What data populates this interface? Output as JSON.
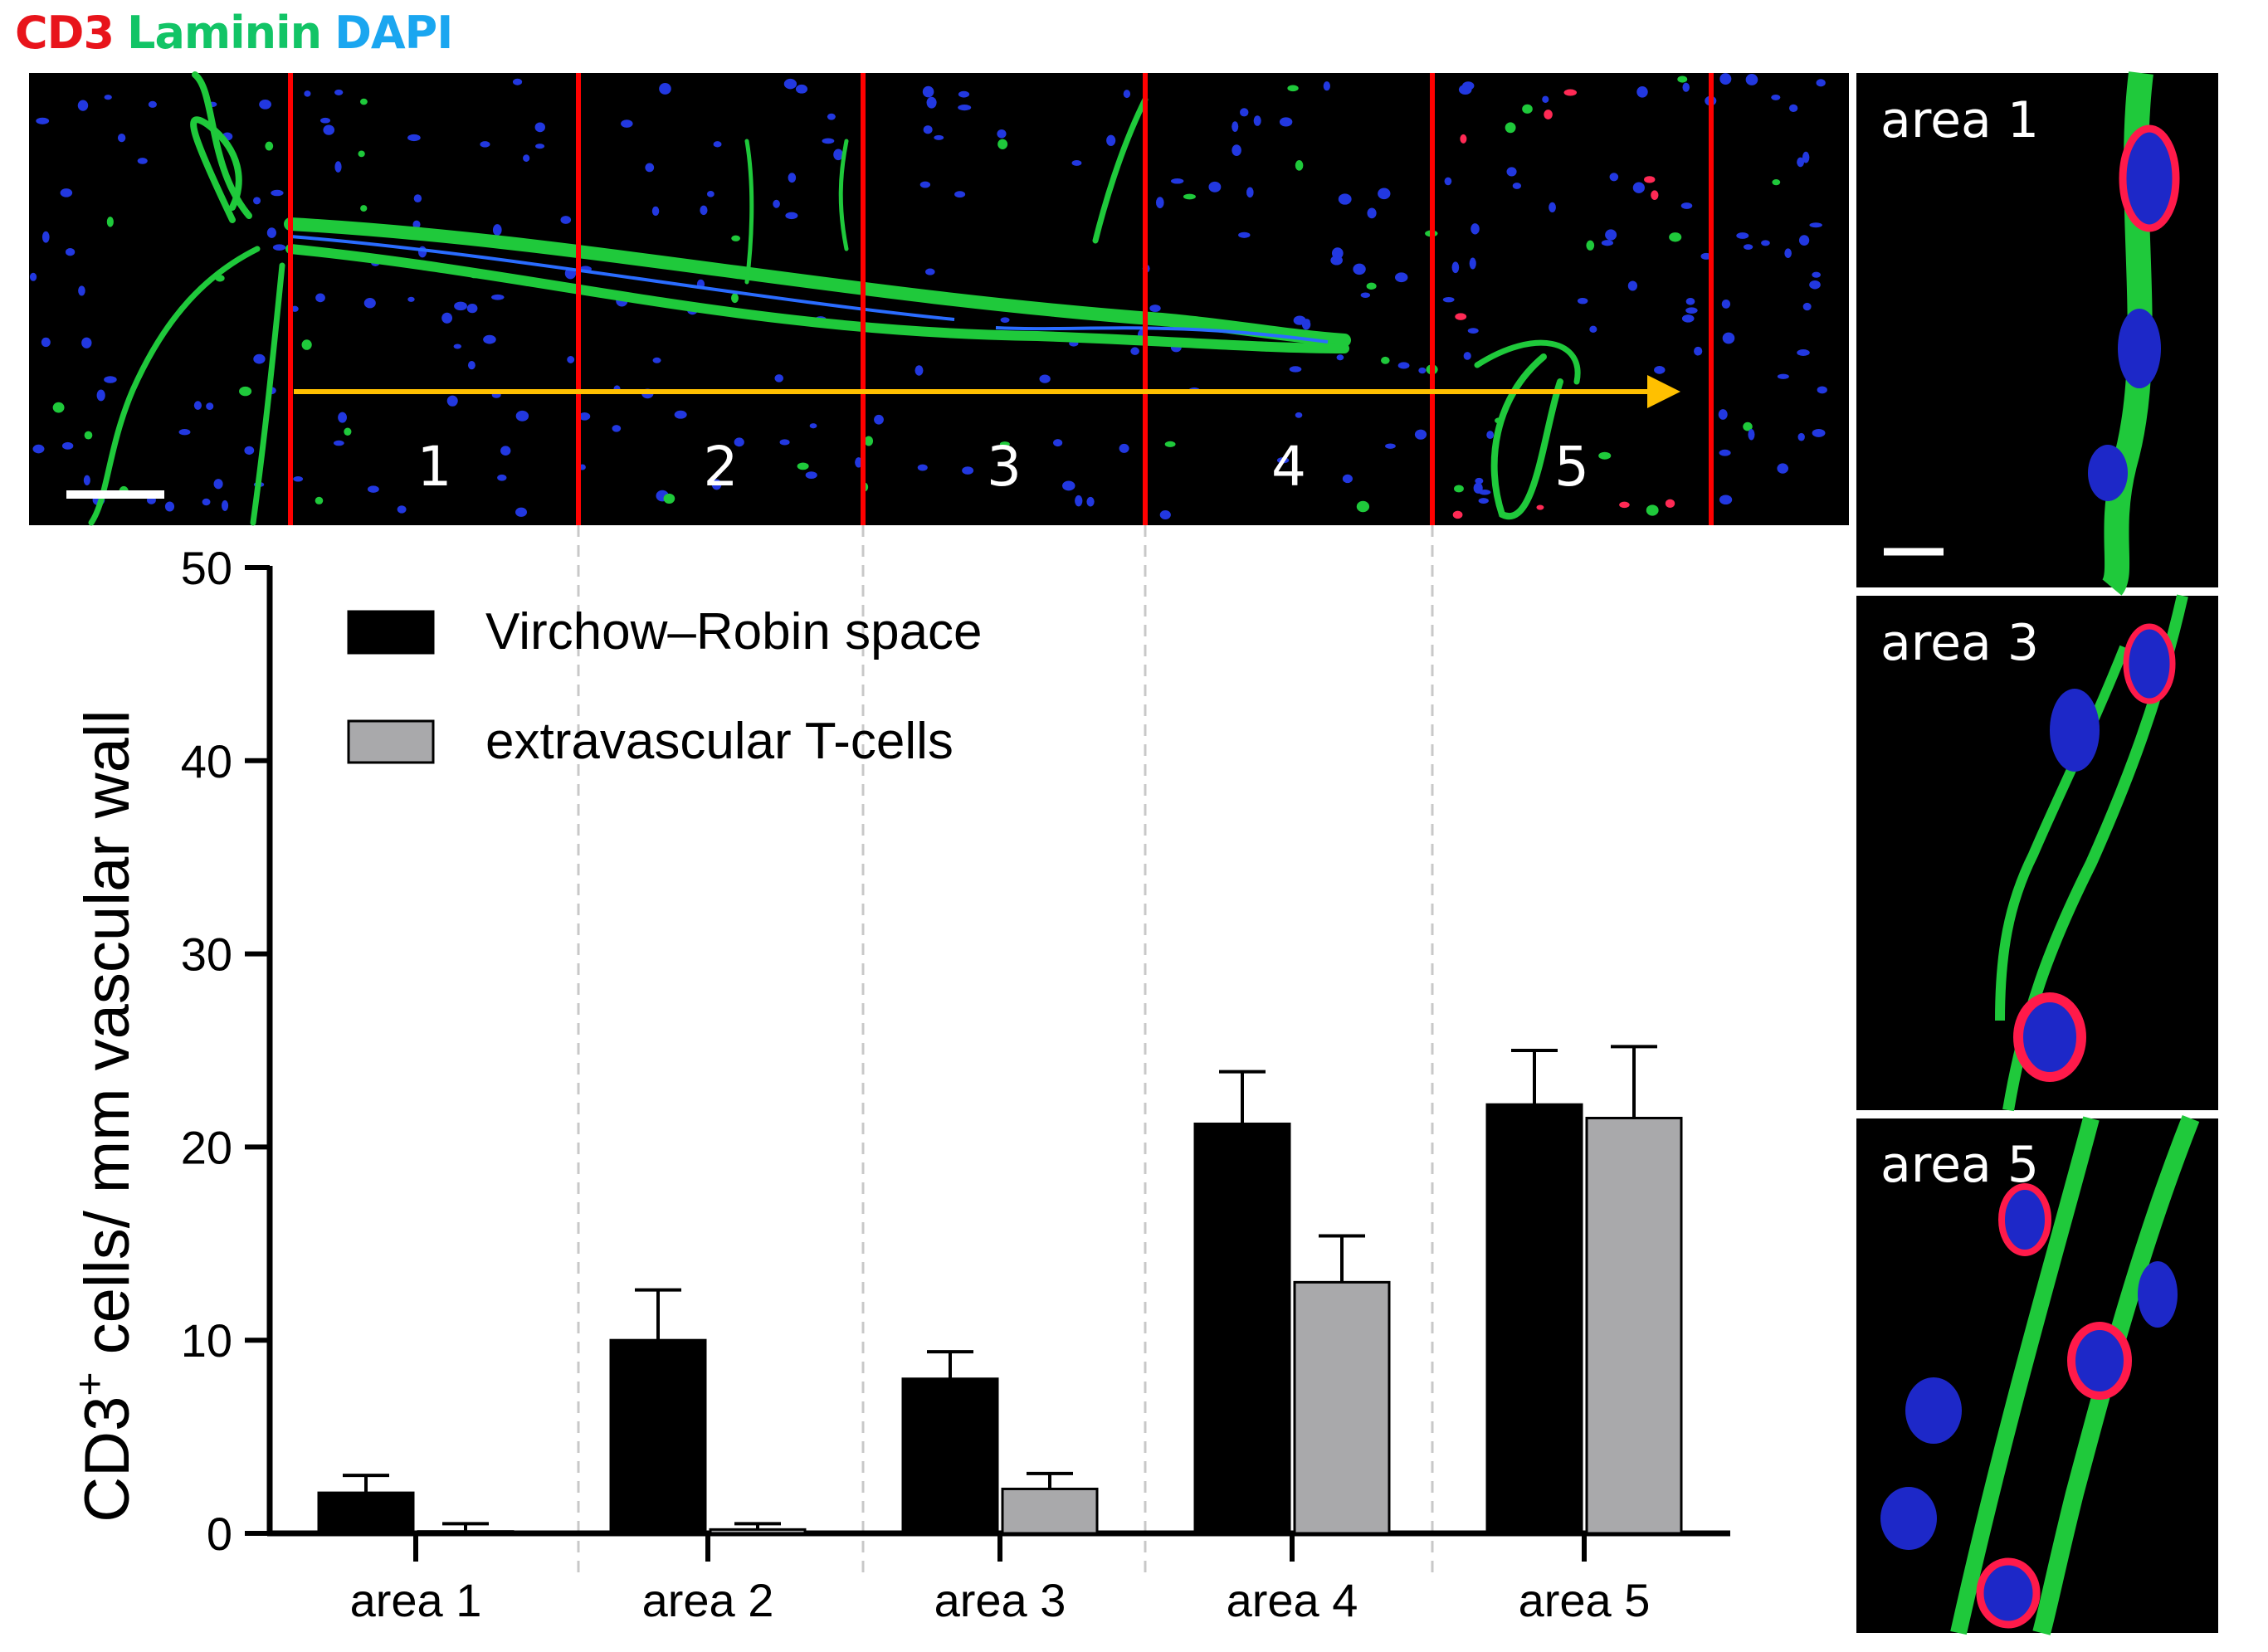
{
  "stain_legend": {
    "items": [
      {
        "label": "CD3",
        "color": "#e8141b"
      },
      {
        "label": "Laminin",
        "color": "#12c466"
      },
      {
        "label": "DAPI",
        "color": "#1aa6f0"
      }
    ]
  },
  "micrograph": {
    "area_numbers": [
      "1",
      "2",
      "3",
      "4",
      "5"
    ]
  },
  "insets": [
    {
      "label": "area 1"
    },
    {
      "label": "area 3"
    },
    {
      "label": "area 5"
    }
  ],
  "chart_data": {
    "type": "bar",
    "categories": [
      "area 1",
      "area 2",
      "area 3",
      "area 4",
      "area 5"
    ],
    "ylabel": "CD3+ cells/ mm vascular wall",
    "ylabel_parts": {
      "before": "CD3",
      "sup": "+",
      "after": " cells/ mm vascular wall"
    },
    "ylim": [
      0,
      50
    ],
    "yticks": [
      "0",
      "10",
      "20",
      "30",
      "40",
      "50"
    ],
    "legend_position": "top-left",
    "series": [
      {
        "name": "Virchow–Robin space",
        "color": "#000000",
        "values": [
          2.1,
          10.0,
          8.0,
          21.2,
          22.2
        ],
        "errors": [
          0.9,
          2.6,
          1.4,
          2.7,
          2.8
        ]
      },
      {
        "name": "extravascular T-cells",
        "color": "#a9a9ab",
        "values": [
          0.1,
          0.2,
          2.3,
          13.0,
          21.5
        ],
        "errors": [
          0.4,
          0.3,
          0.8,
          2.4,
          3.7
        ]
      }
    ]
  }
}
